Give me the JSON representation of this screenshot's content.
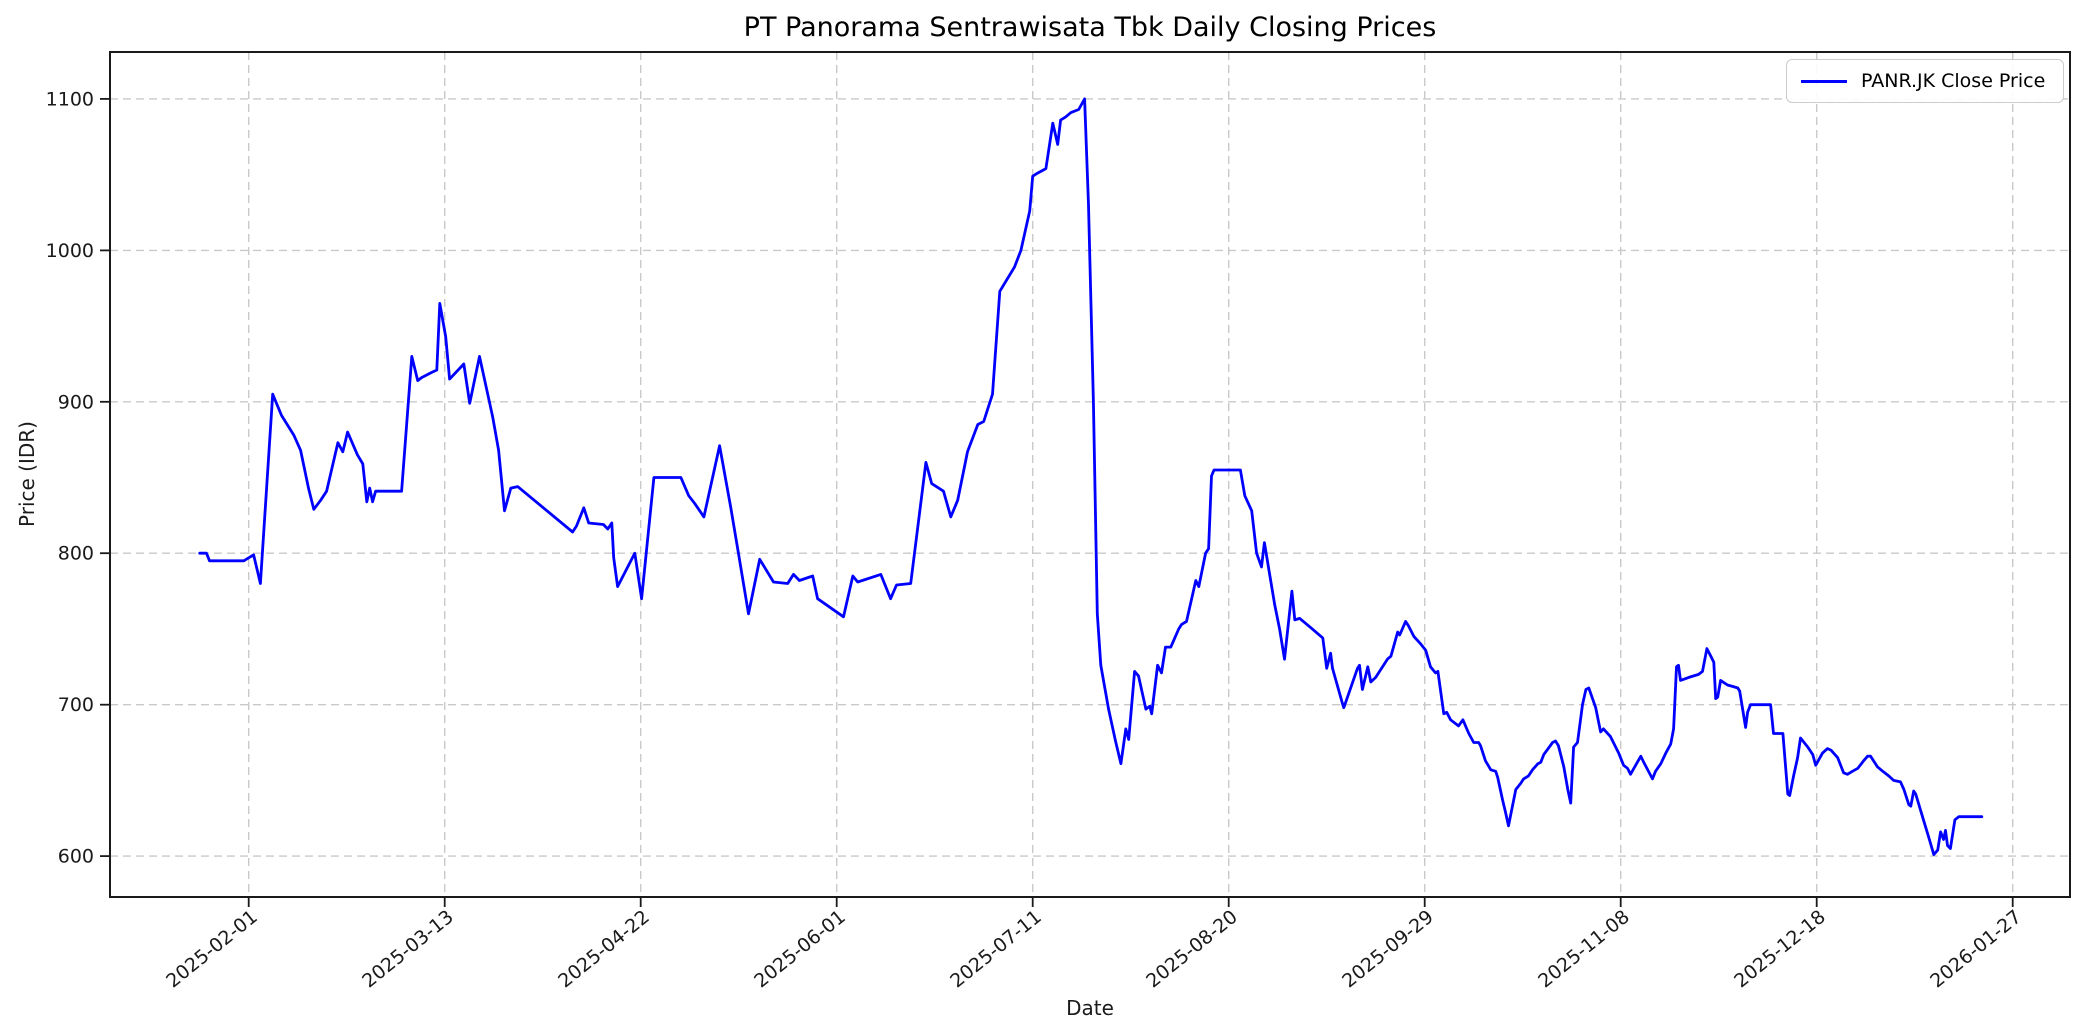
{
  "figure": {
    "background": "#ffffff"
  },
  "chart_data": {
    "type": "line",
    "title": "PT Panorama Sentrawisata Tbk Daily Closing Prices",
    "xlabel": "Date",
    "ylabel": "Price (IDR)",
    "grid": true,
    "grid_style": "dashed",
    "legend": {
      "position": "upper-right",
      "entries": [
        {
          "label": "PANR.JK Close Price",
          "color": "#0000ff"
        }
      ]
    },
    "line_color": "#0000ff",
    "y_ticks": [
      600,
      700,
      800,
      900,
      1000,
      1100
    ],
    "y_domain": [
      573,
      1131
    ],
    "x_domain_days": [
      -18.3,
      381.7
    ],
    "x_unit": "days since 2025-01-22",
    "x_ticks": [
      {
        "day": 10,
        "label": "2025-02-01"
      },
      {
        "day": 50,
        "label": "2025-03-13"
      },
      {
        "day": 90,
        "label": "2025-04-22"
      },
      {
        "day": 130,
        "label": "2025-06-01"
      },
      {
        "day": 170,
        "label": "2025-07-11"
      },
      {
        "day": 210,
        "label": "2025-08-20"
      },
      {
        "day": 250,
        "label": "2025-09-29"
      },
      {
        "day": 290,
        "label": "2025-11-08"
      },
      {
        "day": 330,
        "label": "2025-12-18"
      },
      {
        "day": 370,
        "label": "2026-01-27"
      }
    ],
    "series": [
      {
        "name": "PANR.JK Close Price",
        "color": "#0000ff",
        "start_date": "2025-01-22",
        "end_date": "2026-01-20",
        "x_format": "[days_since_start, close_price_idr]",
        "points": [
          [
            0,
            800
          ],
          [
            1.4,
            800
          ],
          [
            2,
            795
          ],
          [
            9,
            795
          ],
          [
            11,
            799
          ],
          [
            12.4,
            780
          ],
          [
            14.9,
            905
          ],
          [
            16.7,
            891
          ],
          [
            19.2,
            878
          ],
          [
            20.6,
            868
          ],
          [
            22.2,
            843
          ],
          [
            23.3,
            829
          ],
          [
            24.7,
            835
          ],
          [
            25.9,
            841
          ],
          [
            28.2,
            873
          ],
          [
            29.2,
            867
          ],
          [
            30.2,
            880
          ],
          [
            32.2,
            865
          ],
          [
            33.3,
            859
          ],
          [
            34.1,
            834
          ],
          [
            34.7,
            843
          ],
          [
            35.3,
            834
          ],
          [
            35.9,
            841
          ],
          [
            41.2,
            841
          ],
          [
            43.3,
            930
          ],
          [
            44.5,
            914
          ],
          [
            45.3,
            916
          ],
          [
            47.1,
            919
          ],
          [
            48.4,
            921
          ],
          [
            49,
            965
          ],
          [
            50.2,
            943
          ],
          [
            51,
            915
          ],
          [
            53.9,
            925
          ],
          [
            55.1,
            899
          ],
          [
            57.1,
            930
          ],
          [
            59.8,
            890
          ],
          [
            61,
            868
          ],
          [
            62.2,
            828
          ],
          [
            63.5,
            843
          ],
          [
            64.9,
            844
          ],
          [
            76.1,
            814
          ],
          [
            76.9,
            818
          ],
          [
            78.4,
            830
          ],
          [
            79.4,
            820
          ],
          [
            82.4,
            819
          ],
          [
            83.3,
            816
          ],
          [
            84.1,
            820
          ],
          [
            84.5,
            797
          ],
          [
            85.3,
            778
          ],
          [
            88.8,
            800
          ],
          [
            90.2,
            770
          ],
          [
            92.7,
            850
          ],
          [
            98.2,
            850
          ],
          [
            99.8,
            838
          ],
          [
            101,
            833
          ],
          [
            102.9,
            824
          ],
          [
            106.1,
            871
          ],
          [
            108.4,
            830
          ],
          [
            110,
            799
          ],
          [
            112,
            760
          ],
          [
            114.3,
            796
          ],
          [
            117.1,
            781
          ],
          [
            120,
            780
          ],
          [
            121.2,
            786
          ],
          [
            122.4,
            782
          ],
          [
            125.1,
            785
          ],
          [
            126.1,
            770
          ],
          [
            131.4,
            758
          ],
          [
            133.3,
            785
          ],
          [
            134.3,
            781
          ],
          [
            139,
            786
          ],
          [
            141,
            770
          ],
          [
            142.2,
            779
          ],
          [
            145.1,
            780
          ],
          [
            148.2,
            860
          ],
          [
            149.4,
            846
          ],
          [
            151.8,
            841
          ],
          [
            153.3,
            824
          ],
          [
            154.7,
            835
          ],
          [
            156.7,
            867
          ],
          [
            158.8,
            885
          ],
          [
            160,
            887
          ],
          [
            161.8,
            905
          ],
          [
            163.3,
            973
          ],
          [
            166.3,
            989
          ],
          [
            167.6,
            1000
          ],
          [
            169.4,
            1026
          ],
          [
            170,
            1049
          ],
          [
            171,
            1051
          ],
          [
            172.7,
            1054
          ],
          [
            174.1,
            1084
          ],
          [
            175.1,
            1070
          ],
          [
            175.7,
            1086
          ],
          [
            176.7,
            1088
          ],
          [
            177.8,
            1091
          ],
          [
            179.4,
            1093
          ],
          [
            180.6,
            1100
          ],
          [
            181.4,
            1030
          ],
          [
            182.4,
            900
          ],
          [
            183.2,
            760
          ],
          [
            183.9,
            726
          ],
          [
            185.5,
            697
          ],
          [
            186.9,
            676
          ],
          [
            188,
            661
          ],
          [
            189,
            684
          ],
          [
            189.6,
            677
          ],
          [
            190.8,
            722
          ],
          [
            191.6,
            719
          ],
          [
            193.1,
            697
          ],
          [
            193.9,
            699
          ],
          [
            194.3,
            694
          ],
          [
            195.5,
            726
          ],
          [
            196.3,
            721
          ],
          [
            197.1,
            738
          ],
          [
            198.2,
            738
          ],
          [
            199.8,
            750
          ],
          [
            200.4,
            753
          ],
          [
            201.4,
            755
          ],
          [
            203.3,
            782
          ],
          [
            203.9,
            778
          ],
          [
            205.3,
            800
          ],
          [
            205.9,
            803
          ],
          [
            206.5,
            851
          ],
          [
            207,
            855
          ],
          [
            212.4,
            855
          ],
          [
            213.3,
            838
          ],
          [
            214.7,
            828
          ],
          [
            215.7,
            800
          ],
          [
            216.7,
            791
          ],
          [
            217.3,
            807
          ],
          [
            218.2,
            789
          ],
          [
            219.4,
            766
          ],
          [
            220.4,
            750
          ],
          [
            221.4,
            730
          ],
          [
            222.9,
            775
          ],
          [
            223.5,
            756
          ],
          [
            224.5,
            757
          ],
          [
            226.7,
            751
          ],
          [
            229.2,
            744
          ],
          [
            230,
            724
          ],
          [
            230.8,
            734
          ],
          [
            231.2,
            724
          ],
          [
            233.3,
            700
          ],
          [
            233.5,
            698
          ],
          [
            236.3,
            724
          ],
          [
            236.7,
            726
          ],
          [
            237.3,
            710
          ],
          [
            238.4,
            725
          ],
          [
            239,
            715
          ],
          [
            240,
            718
          ],
          [
            242.4,
            730
          ],
          [
            243.1,
            732
          ],
          [
            244.5,
            748
          ],
          [
            244.9,
            746
          ],
          [
            246.1,
            755
          ],
          [
            246.7,
            752
          ],
          [
            247.8,
            745
          ],
          [
            249.2,
            740
          ],
          [
            250.2,
            736
          ],
          [
            251.2,
            725
          ],
          [
            252.2,
            721
          ],
          [
            252.7,
            722
          ],
          [
            253.9,
            694
          ],
          [
            254.5,
            695
          ],
          [
            255.3,
            690
          ],
          [
            256.9,
            686
          ],
          [
            257.8,
            690
          ],
          [
            259,
            681
          ],
          [
            260,
            675
          ],
          [
            261,
            675
          ],
          [
            261.4,
            673
          ],
          [
            262.4,
            663
          ],
          [
            263.5,
            657
          ],
          [
            264.5,
            656
          ],
          [
            264.9,
            652
          ],
          [
            265.9,
            637
          ],
          [
            266.5,
            629
          ],
          [
            267.1,
            620
          ],
          [
            268.6,
            644
          ],
          [
            269.6,
            648
          ],
          [
            270.2,
            651
          ],
          [
            271.2,
            653
          ],
          [
            272,
            657
          ],
          [
            273.1,
            661
          ],
          [
            273.7,
            662
          ],
          [
            274.3,
            667
          ],
          [
            276.1,
            675
          ],
          [
            276.7,
            676
          ],
          [
            277.3,
            673
          ],
          [
            278.4,
            659
          ],
          [
            279.2,
            644
          ],
          [
            279.8,
            635
          ],
          [
            280.4,
            672
          ],
          [
            281.2,
            675
          ],
          [
            282.2,
            700
          ],
          [
            282.9,
            710
          ],
          [
            283.5,
            711
          ],
          [
            284.9,
            698
          ],
          [
            285.9,
            682
          ],
          [
            286.5,
            684
          ],
          [
            287.9,
            679
          ],
          [
            289.6,
            668
          ],
          [
            290.6,
            660
          ],
          [
            291.4,
            658
          ],
          [
            292,
            654
          ],
          [
            294.1,
            666
          ],
          [
            294.7,
            662
          ],
          [
            296.5,
            651
          ],
          [
            297.1,
            656
          ],
          [
            298.2,
            661
          ],
          [
            299.2,
            668
          ],
          [
            300.2,
            674
          ],
          [
            300.8,
            684
          ],
          [
            301.4,
            725
          ],
          [
            301.8,
            726
          ],
          [
            302.2,
            716
          ],
          [
            303.9,
            718
          ],
          [
            304.9,
            719
          ],
          [
            305.9,
            720
          ],
          [
            306.7,
            722
          ],
          [
            307.6,
            737
          ],
          [
            308.4,
            732
          ],
          [
            309,
            728
          ],
          [
            309.4,
            704
          ],
          [
            309.8,
            705
          ],
          [
            310.4,
            716
          ],
          [
            311.8,
            713
          ],
          [
            312.9,
            712
          ],
          [
            313.9,
            711
          ],
          [
            314.3,
            709
          ],
          [
            315.5,
            685
          ],
          [
            315.9,
            695
          ],
          [
            316.5,
            700
          ],
          [
            320.6,
            700
          ],
          [
            321.2,
            681
          ],
          [
            323.1,
            681
          ],
          [
            324.1,
            641
          ],
          [
            324.5,
            640
          ],
          [
            325.3,
            653
          ],
          [
            326.1,
            665
          ],
          [
            326.7,
            678
          ],
          [
            328.2,
            672
          ],
          [
            329.2,
            667
          ],
          [
            329.8,
            660
          ],
          [
            331.2,
            668
          ],
          [
            332.2,
            671
          ],
          [
            332.9,
            670
          ],
          [
            334.3,
            665
          ],
          [
            335.5,
            655
          ],
          [
            336.3,
            654
          ],
          [
            337.3,
            656
          ],
          [
            338.4,
            658
          ],
          [
            339.6,
            663
          ],
          [
            340.4,
            666
          ],
          [
            341,
            666
          ],
          [
            342.4,
            659
          ],
          [
            343.5,
            656
          ],
          [
            344.7,
            653
          ],
          [
            345.7,
            650
          ],
          [
            347.1,
            649
          ],
          [
            347.8,
            644
          ],
          [
            348.8,
            634
          ],
          [
            349.2,
            633
          ],
          [
            349.8,
            643
          ],
          [
            350.2,
            641
          ],
          [
            351.6,
            626
          ],
          [
            352.9,
            612
          ],
          [
            353.9,
            601
          ],
          [
            354.7,
            604
          ],
          [
            355.3,
            616
          ],
          [
            355.9,
            611
          ],
          [
            356.3,
            617
          ],
          [
            356.7,
            607
          ],
          [
            357.3,
            605
          ],
          [
            358.2,
            624
          ],
          [
            359,
            626
          ],
          [
            363.7,
            626
          ]
        ]
      }
    ]
  }
}
